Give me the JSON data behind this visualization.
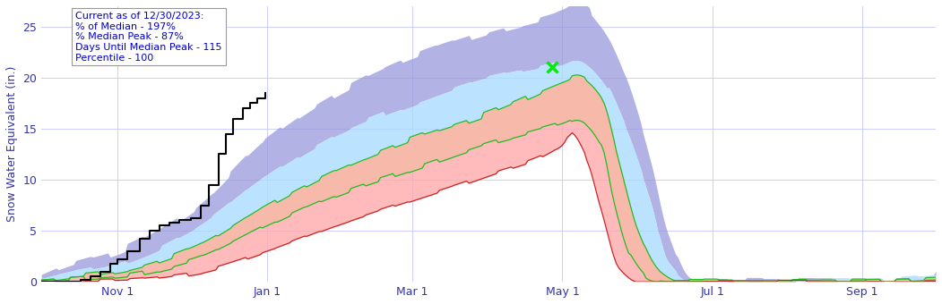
{
  "ylabel": "Snow Water Equivalent (in.)",
  "background_color": "#ffffff",
  "plot_bg_color": "#ffffff",
  "grid_color": "#ccccff",
  "annotation_text": "Current as of 12/30/2023:\n% of Median - 197%\n% Median Peak - 87%\nDays Until Median Peak - 115\nPercentile - 100",
  "annotation_color": "#0000cc",
  "ylim": [
    0,
    27
  ],
  "yticks": [
    0,
    5,
    10,
    15,
    20,
    25
  ],
  "colors": {
    "blue_outer": "#9999dd",
    "cyan_band": "#aaddff",
    "yellow_band": "#ddff99",
    "red_band": "#ffaaaa",
    "median_line": "#22bb22",
    "p25_line": "#22bb22",
    "p10_line": "#cc2222",
    "current_line": "#000000",
    "marker": "#00ee00"
  },
  "x_tick_days": [
    31,
    92,
    151,
    212,
    273,
    334
  ],
  "x_tick_labels": [
    "Nov 1",
    "Jan 1",
    "Mar 1",
    "May 1",
    "Jul 1",
    "Sep 1"
  ],
  "cur_end_day": 91,
  "marker_day": 208,
  "marker_val": 21.0,
  "total_days": 365
}
